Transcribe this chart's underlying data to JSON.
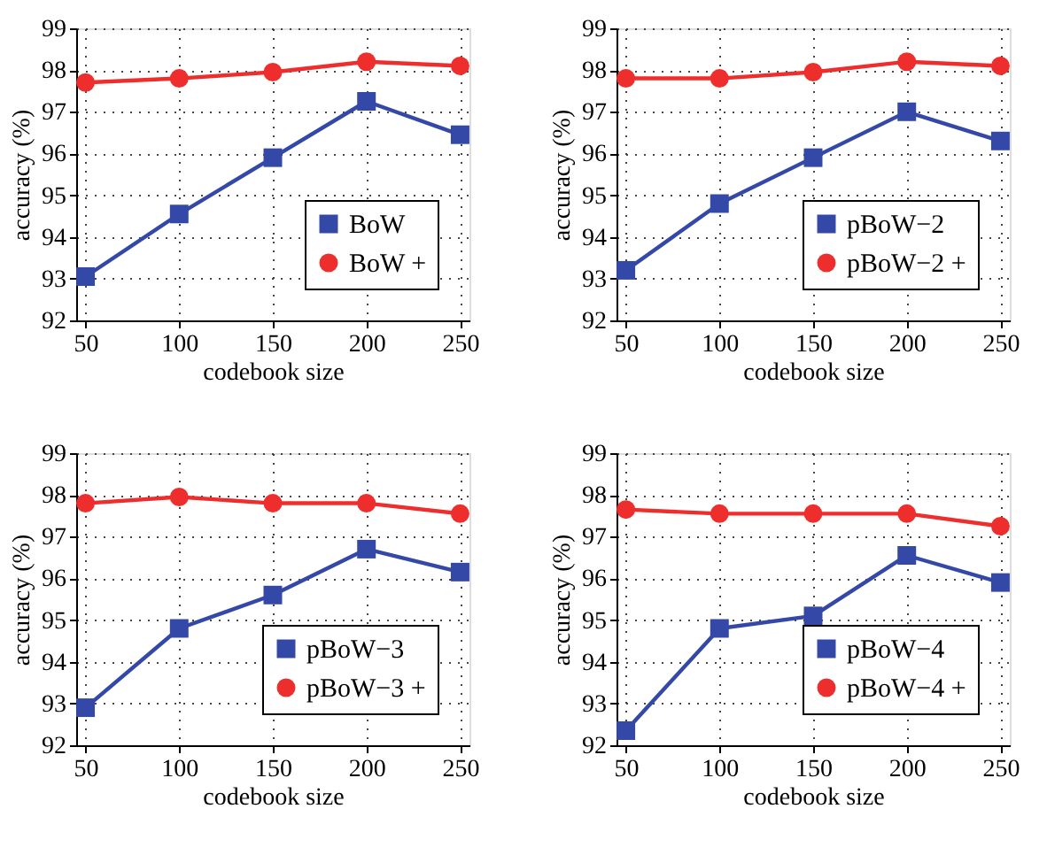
{
  "chart_data": [
    {
      "type": "line",
      "xlabel": "codebook size",
      "ylabel": "accuracy (%)",
      "x": [
        50,
        100,
        150,
        200,
        250
      ],
      "xlim": [
        45,
        255
      ],
      "xticks": [
        50,
        100,
        150,
        200,
        250
      ],
      "ylim": [
        92,
        99
      ],
      "yticks": [
        92,
        93,
        94,
        95,
        96,
        97,
        98,
        99
      ],
      "grid": true,
      "legend": "bottom right",
      "series": [
        {
          "name": "BoW",
          "color": "#3448a8",
          "marker": "square",
          "values": [
            93.05,
            94.55,
            95.9,
            97.25,
            96.45
          ]
        },
        {
          "name": "BoW +",
          "color": "#ee2d2d",
          "marker": "circle",
          "values": [
            97.7,
            97.8,
            97.95,
            98.2,
            98.1
          ]
        }
      ]
    },
    {
      "type": "line",
      "xlabel": "codebook size",
      "ylabel": "accuracy (%)",
      "x": [
        50,
        100,
        150,
        200,
        250
      ],
      "xlim": [
        45,
        255
      ],
      "xticks": [
        50,
        100,
        150,
        200,
        250
      ],
      "ylim": [
        92,
        99
      ],
      "yticks": [
        92,
        93,
        94,
        95,
        96,
        97,
        98,
        99
      ],
      "grid": true,
      "legend": "bottom right",
      "series": [
        {
          "name": "pBoW−2",
          "color": "#3448a8",
          "marker": "square",
          "values": [
            93.2,
            94.8,
            95.9,
            97.0,
            96.3
          ]
        },
        {
          "name": "pBoW−2 +",
          "color": "#ee2d2d",
          "marker": "circle",
          "values": [
            97.8,
            97.8,
            97.95,
            98.2,
            98.1
          ]
        }
      ]
    },
    {
      "type": "line",
      "xlabel": "codebook size",
      "ylabel": "accuracy (%)",
      "x": [
        50,
        100,
        150,
        200,
        250
      ],
      "xlim": [
        45,
        255
      ],
      "xticks": [
        50,
        100,
        150,
        200,
        250
      ],
      "ylim": [
        92,
        99
      ],
      "yticks": [
        92,
        93,
        94,
        95,
        96,
        97,
        98,
        99
      ],
      "grid": true,
      "legend": "bottom right",
      "series": [
        {
          "name": "pBoW−3",
          "color": "#3448a8",
          "marker": "square",
          "values": [
            92.9,
            94.8,
            95.6,
            96.7,
            96.15
          ]
        },
        {
          "name": "pBoW−3 +",
          "color": "#ee2d2d",
          "marker": "circle",
          "values": [
            97.8,
            97.95,
            97.8,
            97.8,
            97.55
          ]
        }
      ]
    },
    {
      "type": "line",
      "xlabel": "codebook size",
      "ylabel": "accuracy (%)",
      "x": [
        50,
        100,
        150,
        200,
        250
      ],
      "xlim": [
        45,
        255
      ],
      "xticks": [
        50,
        100,
        150,
        200,
        250
      ],
      "ylim": [
        92,
        99
      ],
      "yticks": [
        92,
        93,
        94,
        95,
        96,
        97,
        98,
        99
      ],
      "grid": true,
      "legend": "bottom right",
      "series": [
        {
          "name": "pBoW−4",
          "color": "#3448a8",
          "marker": "square",
          "values": [
            92.35,
            94.8,
            95.1,
            96.55,
            95.9
          ]
        },
        {
          "name": "pBoW−4 +",
          "color": "#ee2d2d",
          "marker": "circle",
          "values": [
            97.65,
            97.55,
            97.55,
            97.55,
            97.25
          ]
        }
      ]
    }
  ]
}
